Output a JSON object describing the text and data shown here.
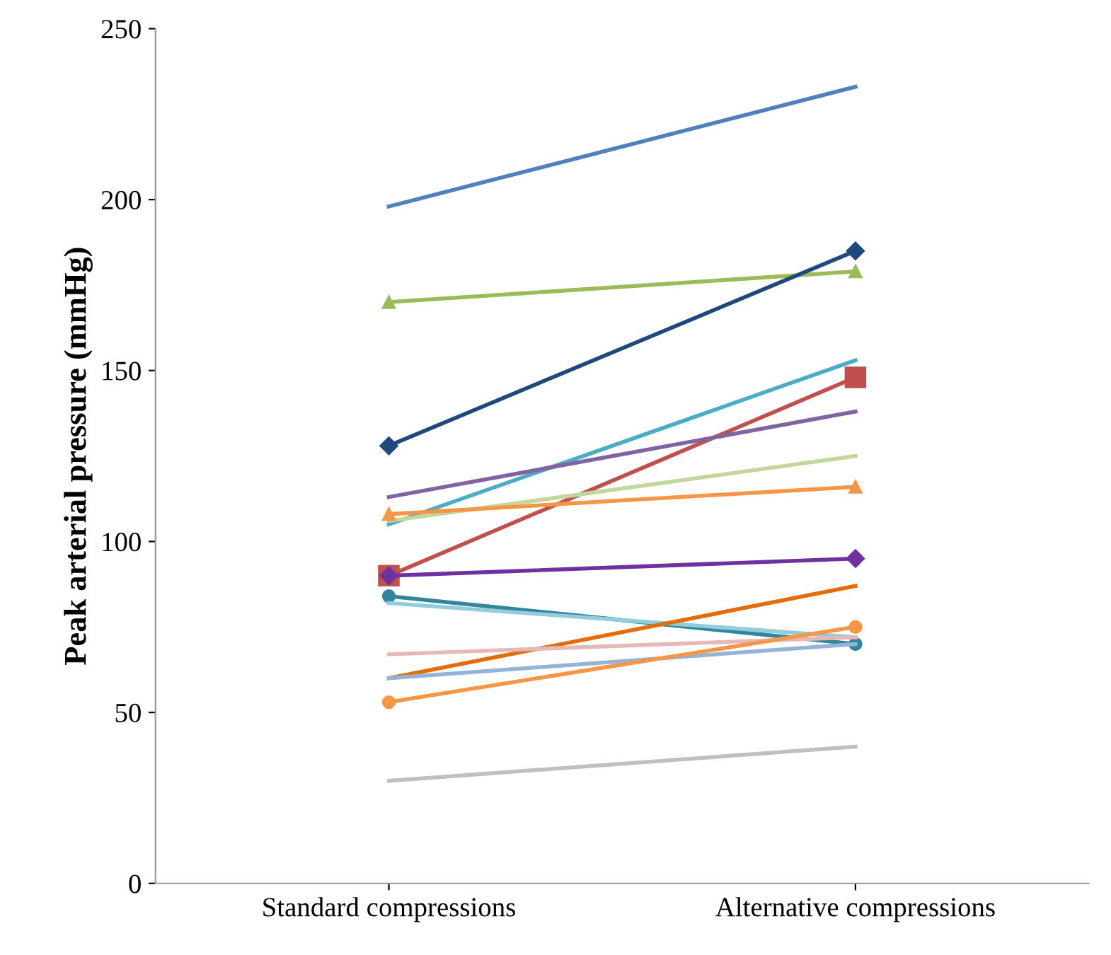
{
  "chart_data": {
    "type": "line",
    "ylabel": "Peak arterial pressure (mmHg)",
    "categories": [
      "Standard compressions",
      "Alternative compressions"
    ],
    "ylim": [
      0,
      250
    ],
    "yticks": [
      0,
      50,
      100,
      150,
      200,
      250
    ],
    "grid": false,
    "legend": false,
    "series": [
      {
        "color": "#4f81bd",
        "values": [
          198,
          233
        ],
        "marker": "none"
      },
      {
        "color": "#9bbb59",
        "values": [
          170,
          179
        ],
        "marker": "triangle"
      },
      {
        "color": "#1f497d",
        "values": [
          128,
          185
        ],
        "marker": "diamond"
      },
      {
        "color": "#4bacc6",
        "values": [
          105,
          153
        ],
        "marker": "none"
      },
      {
        "color": "#c0504d",
        "values": [
          90,
          148
        ],
        "marker": "square"
      },
      {
        "color": "#8064a2",
        "values": [
          113,
          138
        ],
        "marker": "none"
      },
      {
        "color": "#c3d69b",
        "values": [
          106,
          125
        ],
        "marker": "none"
      },
      {
        "color": "#f79646",
        "values": [
          108,
          116
        ],
        "marker": "triangle"
      },
      {
        "color": "#7030a0",
        "values": [
          90,
          95
        ],
        "marker": "diamond"
      },
      {
        "color": "#31859c",
        "values": [
          84,
          70
        ],
        "marker": "circle"
      },
      {
        "color": "#93cddd",
        "values": [
          82,
          72
        ],
        "marker": "none"
      },
      {
        "color": "#e46c0a",
        "values": [
          60,
          87
        ],
        "marker": "none"
      },
      {
        "color": "#e6b9b8",
        "values": [
          67,
          72
        ],
        "marker": "none"
      },
      {
        "color": "#95b3d7",
        "values": [
          60,
          70
        ],
        "marker": "none"
      },
      {
        "color": "#f79646",
        "values": [
          53,
          75
        ],
        "marker": "circle"
      },
      {
        "color": "#bfbfbf",
        "values": [
          30,
          40
        ],
        "marker": "none"
      }
    ]
  }
}
